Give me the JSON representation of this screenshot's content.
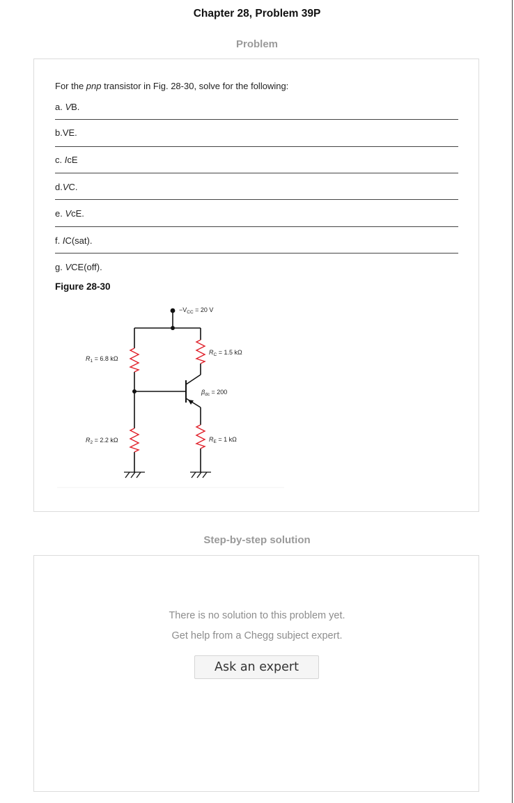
{
  "header": {
    "title": "Chapter 28, Problem 39P"
  },
  "problem": {
    "heading": "Problem",
    "intro_before": "For the ",
    "intro_em": "pnp",
    "intro_after": " transistor in Fig. 28-30, solve for the following:",
    "items": [
      {
        "prefix": "a. ",
        "em": "V",
        "rest": "B."
      },
      {
        "prefix": "b.",
        "em": "",
        "rest": "VE."
      },
      {
        "prefix": "c. ",
        "em": "I",
        "rest": "cE"
      },
      {
        "prefix": "d.",
        "em": "V",
        "rest": "C."
      },
      {
        "prefix": "e. ",
        "em": "V",
        "rest": "cE."
      },
      {
        "prefix": "f. ",
        "em": "I",
        "rest": "C(sat)."
      },
      {
        "prefix": "g. ",
        "em": "V",
        "rest": "CE(off)."
      }
    ],
    "figure_title": "Figure 28-30"
  },
  "circuit": {
    "vcc_label": "−V",
    "vcc_sub": "CC",
    "vcc_value": " = 20 V",
    "r1_label": "R",
    "r1_sub": "1",
    "r1_value": " = 6.8 kΩ",
    "r2_label": "R",
    "r2_sub": "2",
    "r2_value": " = 2.2 kΩ",
    "rc_label": "R",
    "rc_sub": "C",
    "rc_value": " = 1.5 kΩ",
    "re_label": "R",
    "re_sub": "E",
    "re_value": " = 1 kΩ",
    "beta_label": "β",
    "beta_sub": "dc",
    "beta_value": " = 200",
    "resistor_color": "#e0202a"
  },
  "solution": {
    "heading": "Step-by-step solution",
    "no_solution_text": "There is no solution to this problem yet.",
    "help_text": "Get help from a Chegg subject expert.",
    "ask_button_label": "Ask an expert"
  }
}
